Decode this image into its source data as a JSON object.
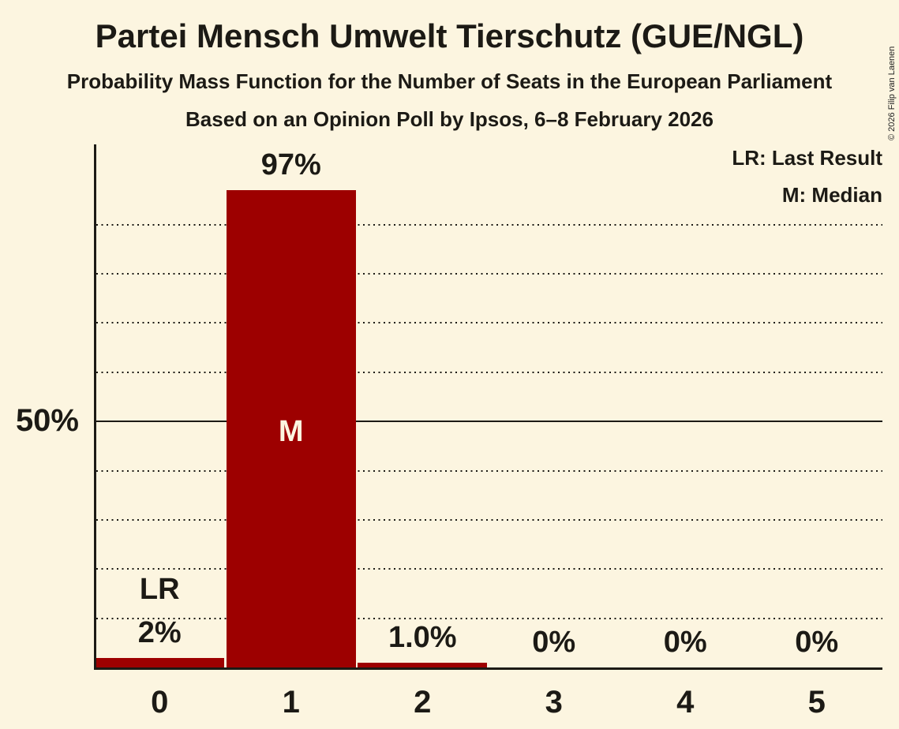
{
  "page": {
    "background": "#fcf5e0",
    "ink": "#1c1a15"
  },
  "header": {
    "title": "Partei Mensch Umwelt Tierschutz (GUE/NGL)",
    "subtitle": "Probability Mass Function for the Number of Seats in the European Parliament",
    "source_line": "Based on an Opinion Poll by Ipsos, 6–8 February 2026"
  },
  "copyright": "© 2026 Filip van Laenen",
  "legend": {
    "last_result": "LR: Last Result",
    "median": "M: Median"
  },
  "chart_data": {
    "type": "bar",
    "title": "Probability Mass Function for the Number of Seats in the European Parliament",
    "xlabel": "",
    "ylabel": "",
    "categories": [
      "0",
      "1",
      "2",
      "3",
      "4",
      "5"
    ],
    "values": [
      2,
      97,
      1.0,
      0,
      0,
      0
    ],
    "value_labels": [
      "2%",
      "97%",
      "1.0%",
      "0%",
      "0%",
      "0%"
    ],
    "ylim": [
      0,
      100
    ],
    "y_tick": {
      "pct": 50,
      "label": "50%"
    },
    "dotted_gridlines_pct": [
      10,
      20,
      30,
      40,
      60,
      70,
      80,
      90
    ],
    "solid_gridline_pct": 50,
    "grid": "horizontal dotted, solid at 50%",
    "legend_position": "top-right",
    "bar_color": "#9d0000",
    "annotations": [
      {
        "label": "LR",
        "meaning": "Last Result",
        "category_index": 0
      },
      {
        "label": "M",
        "meaning": "Median",
        "category_index": 1,
        "inside_bar": true
      }
    ]
  }
}
